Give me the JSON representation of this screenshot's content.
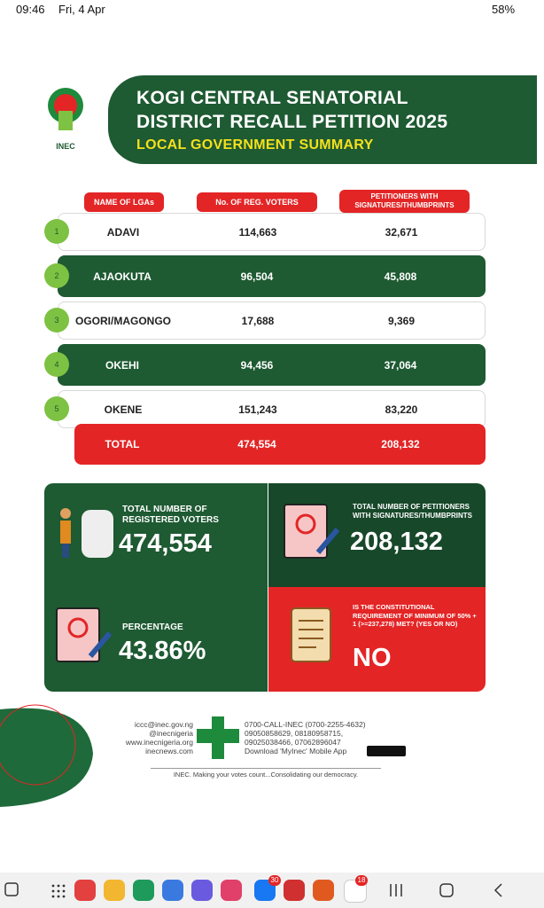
{
  "status_bar": {
    "time": "09:46",
    "date": "Fri, 4 Apr",
    "battery": "58%"
  },
  "header": {
    "logo_text": "INEC",
    "title_line1": "KOGI CENTRAL SENATORIAL",
    "title_line2": "DISTRICT RECALL PETITION 2025",
    "subtitle": "LOCAL GOVERNMENT SUMMARY"
  },
  "table": {
    "headers": [
      "NAME OF LGAs",
      "No. OF REG. VOTERS",
      "PETITIONERS WITH SIGNATURES/THUMBPRINTS"
    ],
    "rows": [
      [
        "1",
        "ADAVI",
        "114,663",
        "32,671"
      ],
      [
        "2",
        "AJAOKUTA",
        "96,504",
        "45,808"
      ],
      [
        "3",
        "OGORI/MAGONGO",
        "17,688",
        "9,369"
      ],
      [
        "4",
        "OKEHI",
        "94,456",
        "37,064"
      ],
      [
        "5",
        "OKENE",
        "151,243",
        "83,220"
      ]
    ],
    "total": [
      "TOTAL",
      "474,554",
      "208,132"
    ]
  },
  "summary": {
    "registered": {
      "label": "TOTAL NUMBER OF REGISTERED VOTERS",
      "value": "474,554"
    },
    "petitioners": {
      "label": "TOTAL NUMBER OF PETITIONERS WITH SIGNATURES/THUMBPRINTS",
      "value": "208,132"
    },
    "percentage": {
      "label": "PERCENTAGE",
      "value": "43.86%"
    },
    "requirement": {
      "label": "IS THE CONSTITUTIONAL REQUIREMENT OF MINIMUM OF 50% + 1 (>=237,278) MET? (YES OR NO)",
      "value": "NO"
    }
  },
  "footer": {
    "contacts": [
      "iccc@inec.gov.ng",
      "@inecnigeria",
      "www.inecnigeria.org",
      "inecnews.com"
    ],
    "phones": [
      "0700-CALL-INEC (0700-2255-4632)",
      "09050858629, 08180958715,",
      "09025038466, 07062896047",
      "Download 'MyInec' Mobile App"
    ],
    "tagline": "INEC. Making your votes count...Consolidating our democracy."
  },
  "nav_bar": {
    "badges": [
      "30",
      "18"
    ]
  }
}
